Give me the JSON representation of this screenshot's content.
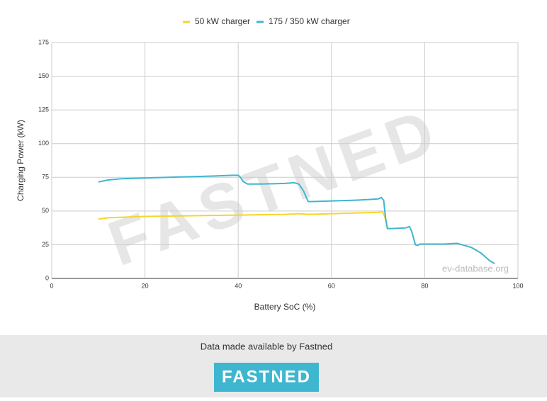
{
  "chart_data": {
    "type": "line",
    "xlabel": "Battery SoC (%)",
    "ylabel": "Charging Power (kW)",
    "xlim": [
      0,
      100
    ],
    "xticks": [
      0,
      20,
      40,
      60,
      80,
      100
    ],
    "ylim": [
      0,
      175
    ],
    "yticks": [
      0,
      25,
      50,
      75,
      100,
      125,
      150,
      175
    ],
    "grid": true,
    "legend": "top",
    "watermark": "FASTNED",
    "source": "ev-database.org",
    "series": [
      {
        "name": "50 kW charger",
        "color": "#f5d629",
        "x": [
          10,
          12,
          20,
          30,
          40,
          50,
          53,
          55,
          60,
          70,
          71,
          71.5,
          72
        ],
        "values": [
          44,
          45,
          46,
          46.5,
          47,
          47.5,
          48,
          47.5,
          48,
          49,
          49.5,
          45,
          37
        ]
      },
      {
        "name": "175 / 350 kW charger",
        "color": "#3fb6cf",
        "x": [
          10,
          12,
          15,
          20,
          25,
          30,
          35,
          39,
          40,
          40.5,
          41,
          42,
          45,
          50,
          52,
          53,
          54,
          55,
          56,
          60,
          65,
          68,
          70,
          70.7,
          71.2,
          71.6,
          72,
          73,
          76,
          76.7,
          77.2,
          78,
          78.5,
          79,
          84,
          87,
          88,
          90,
          92,
          94,
          95
        ],
        "values": [
          71.5,
          73,
          74,
          74.5,
          75,
          75.5,
          76,
          76.5,
          76.5,
          75,
          72,
          70,
          70,
          70.5,
          71,
          70,
          65,
          57,
          57,
          57.5,
          58,
          58.5,
          59,
          60,
          58,
          45,
          37,
          37,
          37.5,
          38.5,
          35,
          25,
          24.5,
          25.5,
          25.5,
          26,
          25,
          23,
          19,
          13,
          11
        ]
      }
    ]
  },
  "footer": {
    "text": "Data made available by Fastned",
    "logo": "FASTNED"
  }
}
